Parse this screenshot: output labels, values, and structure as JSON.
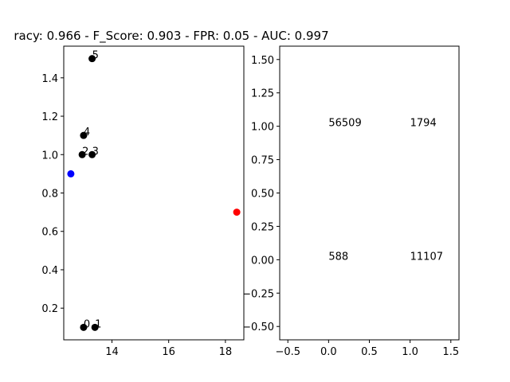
{
  "title": "racy: 0.966 - F_Score: 0.903 - FPR: 0.05 - AUC: 0.997",
  "chart_data": [
    {
      "type": "scatter",
      "xlim": [
        12.3,
        18.65
      ],
      "ylim": [
        0.035,
        1.565
      ],
      "xticks": [
        14,
        16,
        18
      ],
      "yticks": [
        0.2,
        0.4,
        0.6,
        0.8,
        1.0,
        1.2,
        1.4
      ],
      "ytick_labels": [
        "0.2",
        "0.4",
        "0.6",
        "0.8",
        "1.0",
        "1.2",
        "1.4"
      ],
      "grid": false,
      "series": [
        {
          "color": "#000000",
          "points": [
            {
              "x": 13.0,
              "y": 0.1,
              "label": "0"
            },
            {
              "x": 13.4,
              "y": 0.1,
              "label": "1"
            },
            {
              "x": 12.95,
              "y": 1.0,
              "label": "2"
            },
            {
              "x": 13.3,
              "y": 1.0,
              "label": "3"
            },
            {
              "x": 13.0,
              "y": 1.1,
              "label": "4"
            },
            {
              "x": 13.3,
              "y": 1.5,
              "label": "5"
            }
          ]
        },
        {
          "color": "#0000ff",
          "points": [
            {
              "x": 12.55,
              "y": 0.9,
              "label": ""
            }
          ]
        },
        {
          "color": "#ff0000",
          "points": [
            {
              "x": 18.4,
              "y": 0.7,
              "label": ""
            }
          ]
        }
      ]
    },
    {
      "type": "table",
      "xlim": [
        -0.6,
        1.6
      ],
      "ylim": [
        -0.6,
        1.6
      ],
      "xticks": [
        -0.5,
        0.0,
        0.5,
        1.0,
        1.5
      ],
      "xtick_labels": [
        "−0.5",
        "0.0",
        "0.5",
        "1.0",
        "1.5"
      ],
      "yticks": [
        -0.5,
        -0.25,
        0.0,
        0.25,
        0.5,
        0.75,
        1.0,
        1.25,
        1.5
      ],
      "ytick_labels": [
        "−0.50",
        "−0.25",
        "0.00",
        "0.25",
        "0.50",
        "0.75",
        "1.00",
        "1.25",
        "1.50"
      ],
      "grid": false,
      "cells": [
        {
          "x": 0,
          "y": 1,
          "value": "56509"
        },
        {
          "x": 1,
          "y": 1,
          "value": "1794"
        },
        {
          "x": 0,
          "y": 0,
          "value": "588"
        },
        {
          "x": 1,
          "y": 0,
          "value": "11107"
        }
      ]
    }
  ]
}
